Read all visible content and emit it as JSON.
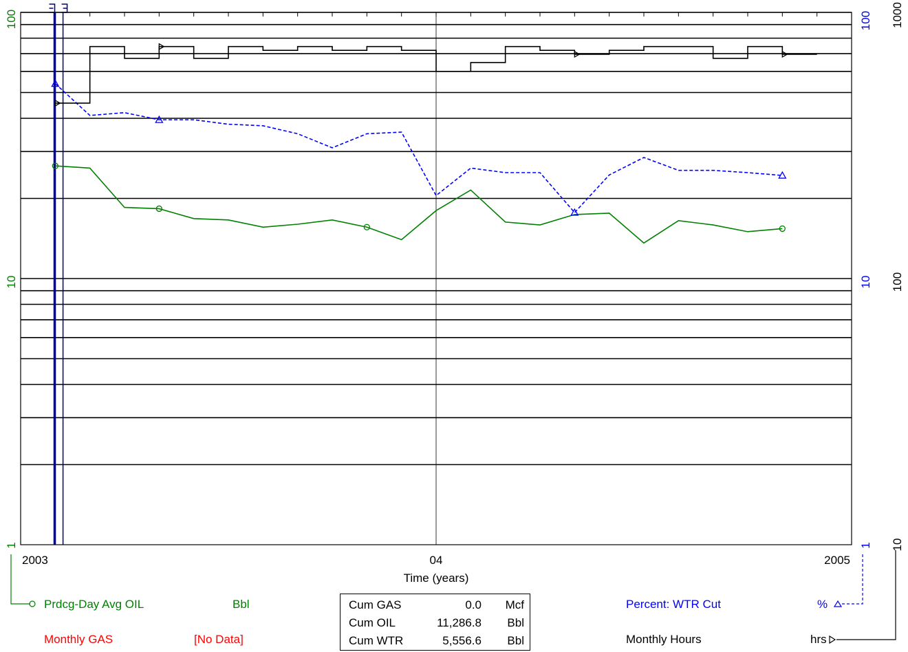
{
  "colors": {
    "oil": "#008000",
    "gas": "#ff0000",
    "wtr": "#0000ff",
    "hours": "#000000",
    "grid": "#000000",
    "cursor": "#000080"
  },
  "chart_data": {
    "type": "line",
    "xlabel": "Time (years)",
    "x_ticks": [
      "2003",
      "04",
      "2005"
    ],
    "xlim": [
      "2003-01",
      "2005-01"
    ],
    "log_scale_y": true,
    "left_axis": {
      "ticks": [
        "1",
        "10",
        "100"
      ],
      "ylim": [
        1,
        100
      ],
      "color": "#008000"
    },
    "right_axis_1": {
      "ticks": [
        "1",
        "10",
        "100"
      ],
      "ylim": [
        1,
        100
      ],
      "color": "#0000ff"
    },
    "right_axis_2": {
      "ticks": [
        "10",
        "100",
        "1000"
      ],
      "ylim": [
        10,
        1000
      ],
      "color": "#000000"
    },
    "months": [
      "2003-02",
      "2003-03",
      "2003-04",
      "2003-05",
      "2003-06",
      "2003-07",
      "2003-08",
      "2003-09",
      "2003-10",
      "2003-11",
      "2003-12",
      "2004-01",
      "2004-02",
      "2004-03",
      "2004-04",
      "2004-05",
      "2004-06",
      "2004-07",
      "2004-08",
      "2004-09",
      "2004-10",
      "2004-11",
      "2004-12"
    ],
    "series": [
      {
        "name": "Prdcg-Day Avg OIL",
        "unit": "Bbl",
        "axis": "left",
        "style": "solid",
        "marker": "circle",
        "values": [
          26.5,
          26.0,
          18.5,
          18.3,
          16.8,
          16.6,
          15.6,
          16.0,
          16.6,
          15.6,
          14.0,
          18.0,
          21.5,
          16.3,
          15.9,
          17.4,
          17.6,
          13.6,
          16.5,
          15.9,
          15.0,
          15.4,
          null
        ]
      },
      {
        "name": "Percent: WTR Cut",
        "unit": "%",
        "axis": "right_axis_1",
        "style": "dashed",
        "marker": "triangle",
        "values": [
          54,
          41,
          42,
          39.5,
          39.5,
          38,
          37.5,
          35,
          31,
          35,
          35.5,
          20.5,
          26,
          25,
          25,
          17.7,
          24.5,
          28.5,
          25.5,
          25.5,
          25,
          24.4,
          null
        ]
      },
      {
        "name": "Monthly Hours",
        "unit": "hrs",
        "axis": "right_axis_2",
        "style": "step",
        "marker": "triangle-right",
        "values": [
          456,
          744,
          672,
          744,
          672,
          744,
          720,
          744,
          720,
          744,
          720,
          600,
          648,
          744,
          720,
          696,
          720,
          744,
          744,
          672,
          744,
          696,
          null
        ]
      },
      {
        "name": "Monthly GAS",
        "unit": "[No Data]",
        "axis": "left",
        "style": "none",
        "values": []
      }
    ]
  },
  "legend": {
    "oil_name": "Prdcg-Day Avg OIL",
    "oil_unit": "Bbl",
    "gas_name": "Monthly GAS",
    "gas_unit": "[No Data]",
    "wtr_name": "Percent: WTR Cut",
    "wtr_unit": "%",
    "hours_name": "Monthly Hours",
    "hours_unit": "hrs"
  },
  "cumulative": [
    {
      "label": "Cum GAS",
      "value": "0.0",
      "unit": "Mcf"
    },
    {
      "label": "Cum OIL",
      "value": "11,286.8",
      "unit": "Bbl"
    },
    {
      "label": "Cum WTR",
      "value": "5,556.6",
      "unit": "Bbl"
    }
  ]
}
